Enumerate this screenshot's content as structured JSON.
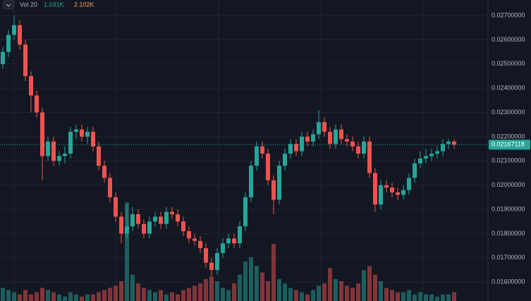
{
  "chart_data": {
    "type": "candlestick",
    "legend": {
      "title": "Vol 20",
      "labels": [
        "1.031K",
        "2.102K"
      ],
      "colors": [
        "#26a69a",
        "#f0a04b"
      ]
    },
    "up_color": "#26a69a",
    "down_color": "#ef5350",
    "ylim": [
      0.01522,
      0.02764
    ],
    "yticks": [
      {
        "value": 0.016,
        "label": "0.01600000"
      },
      {
        "value": 0.017,
        "label": "0.01700000"
      },
      {
        "value": 0.018,
        "label": "0.01800000"
      },
      {
        "value": 0.019,
        "label": "0.01900000"
      },
      {
        "value": 0.02,
        "label": "0.02000000"
      },
      {
        "value": 0.021,
        "label": "0.02100000"
      },
      {
        "value": 0.022,
        "label": "0.02200000"
      },
      {
        "value": 0.023,
        "label": "0.02300000"
      },
      {
        "value": 0.024,
        "label": "0.02400000"
      },
      {
        "value": 0.025,
        "label": "0.02500000"
      },
      {
        "value": 0.026,
        "label": "0.02600000"
      },
      {
        "value": 0.027,
        "label": "0.02700000"
      }
    ],
    "grid": true,
    "open": [
      0.025,
      0.0255,
      0.0262,
      0.0266,
      0.0258,
      0.0245,
      0.0237,
      0.023,
      0.0212,
      0.0218,
      0.021,
      0.0212,
      0.0213,
      0.0222,
      0.0223,
      0.022,
      0.0222,
      0.0216,
      0.0208,
      0.0203,
      0.0195,
      0.0187,
      0.018,
      0.0183,
      0.0188,
      0.0184,
      0.018,
      0.0185,
      0.0187,
      0.0184,
      0.0189,
      0.0188,
      0.0185,
      0.0181,
      0.0178,
      0.0177,
      0.0174,
      0.0168,
      0.0165,
      0.0172,
      0.0176,
      0.0178,
      0.0176,
      0.0183,
      0.0195,
      0.0208,
      0.0216,
      0.0213,
      0.0202,
      0.0194,
      0.0208,
      0.0213,
      0.0217,
      0.0214,
      0.022,
      0.0218,
      0.0221,
      0.0226,
      0.0222,
      0.0217,
      0.0223,
      0.0219,
      0.0218,
      0.0216,
      0.0213,
      0.0218,
      0.0205,
      0.0192,
      0.02,
      0.0199,
      0.0197,
      0.0196,
      0.0198,
      0.0203,
      0.0209,
      0.0211,
      0.0212,
      0.0213,
      0.0214,
      0.0217,
      0.0218
    ],
    "high": [
      0.0257,
      0.0264,
      0.027,
      0.0268,
      0.026,
      0.0247,
      0.0239,
      0.0232,
      0.022,
      0.022,
      0.0214,
      0.0216,
      0.0224,
      0.0225,
      0.0225,
      0.0224,
      0.0224,
      0.0218,
      0.021,
      0.0205,
      0.0197,
      0.0189,
      0.0192,
      0.0191,
      0.019,
      0.0186,
      0.0187,
      0.0189,
      0.0189,
      0.0191,
      0.0191,
      0.019,
      0.0187,
      0.0183,
      0.018,
      0.0179,
      0.0176,
      0.017,
      0.0174,
      0.0178,
      0.018,
      0.018,
      0.0185,
      0.0197,
      0.021,
      0.0218,
      0.0218,
      0.0215,
      0.0204,
      0.021,
      0.0215,
      0.0219,
      0.0219,
      0.0222,
      0.0222,
      0.0223,
      0.0231,
      0.0228,
      0.0224,
      0.0225,
      0.0225,
      0.0221,
      0.022,
      0.0218,
      0.022,
      0.022,
      0.0207,
      0.0202,
      0.0202,
      0.0201,
      0.0199,
      0.02,
      0.0205,
      0.0211,
      0.0214,
      0.0215,
      0.0215,
      0.0216,
      0.0219,
      0.0219,
      0.0219
    ],
    "low": [
      0.0248,
      0.0253,
      0.026,
      0.0256,
      0.0243,
      0.023,
      0.0228,
      0.0202,
      0.021,
      0.0208,
      0.0208,
      0.0209,
      0.0211,
      0.0219,
      0.0218,
      0.0217,
      0.0214,
      0.0206,
      0.0201,
      0.0193,
      0.0185,
      0.0176,
      0.0178,
      0.0181,
      0.0182,
      0.0178,
      0.0178,
      0.0183,
      0.0182,
      0.0182,
      0.0186,
      0.0183,
      0.0179,
      0.0176,
      0.0175,
      0.0172,
      0.0166,
      0.0162,
      0.0163,
      0.017,
      0.0174,
      0.0174,
      0.0174,
      0.0181,
      0.0193,
      0.0206,
      0.0211,
      0.02,
      0.0188,
      0.0192,
      0.0206,
      0.0211,
      0.0212,
      0.0212,
      0.0216,
      0.0216,
      0.0219,
      0.022,
      0.0215,
      0.0215,
      0.0217,
      0.0216,
      0.0214,
      0.0211,
      0.0211,
      0.0203,
      0.0189,
      0.019,
      0.0197,
      0.0195,
      0.0194,
      0.0194,
      0.0196,
      0.0201,
      0.0207,
      0.0209,
      0.021,
      0.0211,
      0.0212,
      0.0215,
      0.0215
    ],
    "close": [
      0.0255,
      0.0262,
      0.0266,
      0.0258,
      0.0245,
      0.0237,
      0.023,
      0.0212,
      0.0218,
      0.021,
      0.0212,
      0.0213,
      0.0222,
      0.0223,
      0.022,
      0.0222,
      0.0216,
      0.0208,
      0.0203,
      0.0195,
      0.0187,
      0.018,
      0.0183,
      0.0188,
      0.0184,
      0.018,
      0.0185,
      0.0187,
      0.0184,
      0.0189,
      0.0188,
      0.0185,
      0.0181,
      0.0178,
      0.0177,
      0.0174,
      0.0168,
      0.0165,
      0.0172,
      0.0176,
      0.0178,
      0.0176,
      0.0183,
      0.0195,
      0.0208,
      0.0216,
      0.0213,
      0.0202,
      0.0194,
      0.0208,
      0.0213,
      0.0217,
      0.0214,
      0.022,
      0.0218,
      0.0221,
      0.0226,
      0.0222,
      0.0217,
      0.0223,
      0.0219,
      0.0218,
      0.0216,
      0.0213,
      0.0218,
      0.0205,
      0.0192,
      0.02,
      0.0199,
      0.0197,
      0.0196,
      0.0198,
      0.0203,
      0.0209,
      0.0211,
      0.0212,
      0.0213,
      0.0214,
      0.0217,
      0.0218,
      0.02167118
    ],
    "volume": [
      0.6,
      0.5,
      0.4,
      0.3,
      0.5,
      0.3,
      0.4,
      0.6,
      0.5,
      0.4,
      0.3,
      0.2,
      0.4,
      0.3,
      0.2,
      0.3,
      0.3,
      0.4,
      0.5,
      0.6,
      0.7,
      0.9,
      4.5,
      1.2,
      0.8,
      0.6,
      0.5,
      0.4,
      0.5,
      0.3,
      0.4,
      0.3,
      0.5,
      0.6,
      0.7,
      0.8,
      1.0,
      1.1,
      0.9,
      0.6,
      0.5,
      0.8,
      1.2,
      1.8,
      2.0,
      1.6,
      1.3,
      0.9,
      2.6,
      1.0,
      0.8,
      0.6,
      0.5,
      0.4,
      0.3,
      0.5,
      0.7,
      0.8,
      1.5,
      1.0,
      0.9,
      0.7,
      0.6,
      0.8,
      1.4,
      1.6,
      1.2,
      0.9,
      0.6,
      0.5,
      0.4,
      0.4,
      0.5,
      0.3,
      0.4,
      0.3,
      0.3,
      0.2,
      0.3,
      0.3,
      0.4
    ]
  }
}
